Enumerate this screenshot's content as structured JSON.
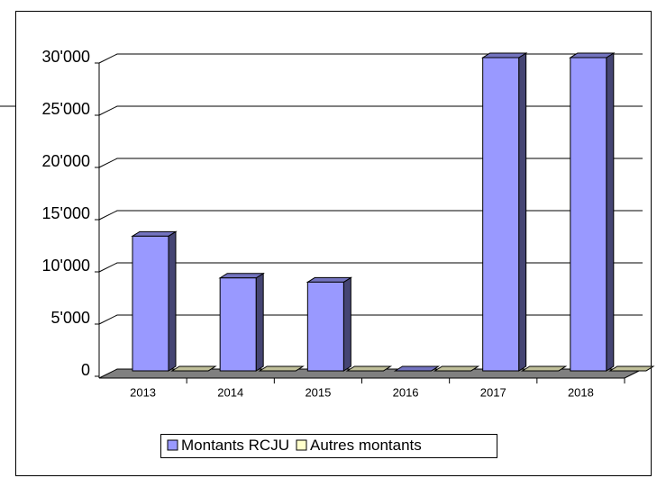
{
  "chart_data": {
    "type": "bar3d",
    "categories": [
      "2013",
      "2014",
      "2015",
      "2016",
      "2017",
      "2018"
    ],
    "series": [
      {
        "name": "Montants RCJU",
        "color": "#9999ff",
        "values": [
          12900,
          8900,
          8500,
          0,
          30000,
          30000
        ]
      },
      {
        "name": "Autres montants",
        "color": "#ffffcc",
        "values": [
          0,
          0,
          0,
          0,
          0,
          0
        ]
      }
    ],
    "ylim": [
      0,
      30000
    ],
    "yticks": [
      0,
      {
        "value": 5000,
        "label": "5'000"
      },
      {
        "value": 10000,
        "label": "10'000"
      },
      {
        "value": 15000,
        "label": "15'000"
      },
      {
        "value": 20000,
        "label": "20'000"
      },
      {
        "value": 25000,
        "label": "25'000"
      },
      {
        "value": 30000,
        "label": "30'000"
      }
    ],
    "grid": true,
    "legend": "bottom"
  }
}
